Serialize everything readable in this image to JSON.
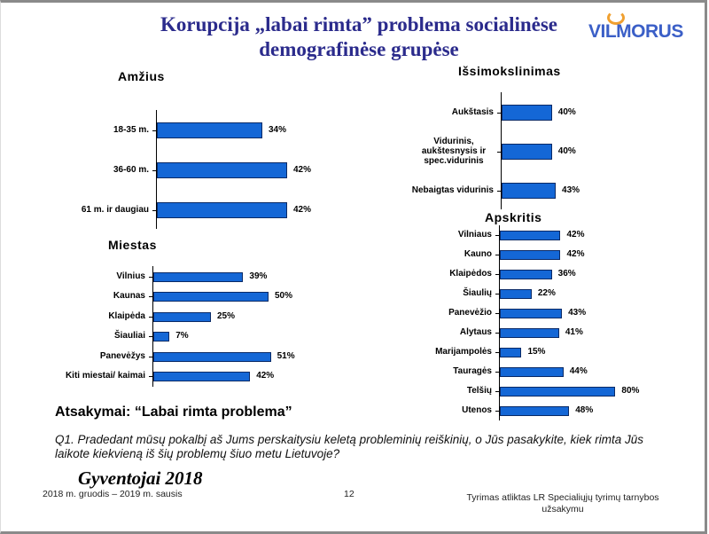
{
  "header": {
    "title_line1": "Korupcija „labai rimta” problema socialinėse",
    "title_line2": "demografinėse grupėse",
    "logo": "VILMORUS"
  },
  "colors": {
    "bar": "#1467d6",
    "title": "#2b2b8c"
  },
  "chart_data": [
    {
      "type": "bar",
      "orientation": "horizontal",
      "title": "Amžius",
      "categories": [
        "18-35 m.",
        "36-60 m.",
        "61 m. ir daugiau"
      ],
      "values": [
        34,
        42,
        42
      ],
      "labels": [
        "34%",
        "42%",
        "42%"
      ]
    },
    {
      "type": "bar",
      "orientation": "horizontal",
      "title": "Išsimokslinimas",
      "categories": [
        "Aukštasis",
        "Vidurinis, aukštesnysis ir spec.vidurinis",
        "Nebaigtas vidurinis"
      ],
      "values": [
        40,
        40,
        43
      ],
      "labels": [
        "40%",
        "40%",
        "43%"
      ]
    },
    {
      "type": "bar",
      "orientation": "horizontal",
      "title": "Miestas",
      "categories": [
        "Vilnius",
        "Kaunas",
        "Klaipėda",
        "Šiauliai",
        "Panevėžys",
        "Kiti miestai/ kaimai"
      ],
      "values": [
        39,
        50,
        25,
        7,
        51,
        42
      ],
      "labels": [
        "39%",
        "50%",
        "25%",
        "7%",
        "51%",
        "42%"
      ]
    },
    {
      "type": "bar",
      "orientation": "horizontal",
      "title": "Apskritis",
      "categories": [
        "Vilniaus",
        "Kauno",
        "Klaipėdos",
        "Šiaulių",
        "Panevėžio",
        "Alytaus",
        "Marijampolės",
        "Tauragės",
        "Telšių",
        "Utenos"
      ],
      "values": [
        42,
        42,
        36,
        22,
        43,
        41,
        15,
        44,
        80,
        48
      ],
      "labels": [
        "42%",
        "42%",
        "36%",
        "22%",
        "43%",
        "41%",
        "15%",
        "44%",
        "80%",
        "48%"
      ]
    }
  ],
  "answer_label": "Atsakymai: “Labai rimta problema”",
  "question": "Q1. Pradedant mūsų pokalbį aš Jums perskaitysiu keletą probleminių reiškinių, o Jūs pasakykite, kiek rimta Jūs laikote kiekvieną iš šių problemų šiuo metu Lietuvoje?",
  "footer": {
    "survey": "Gyventojai 2018",
    "period": "2018 m. gruodis – 2019 m. sausis",
    "page": "12",
    "note_line1": "Tyrimas atliktas LR Specialiųjų tyrimų tarnybos",
    "note_line2": "užsakymu"
  }
}
